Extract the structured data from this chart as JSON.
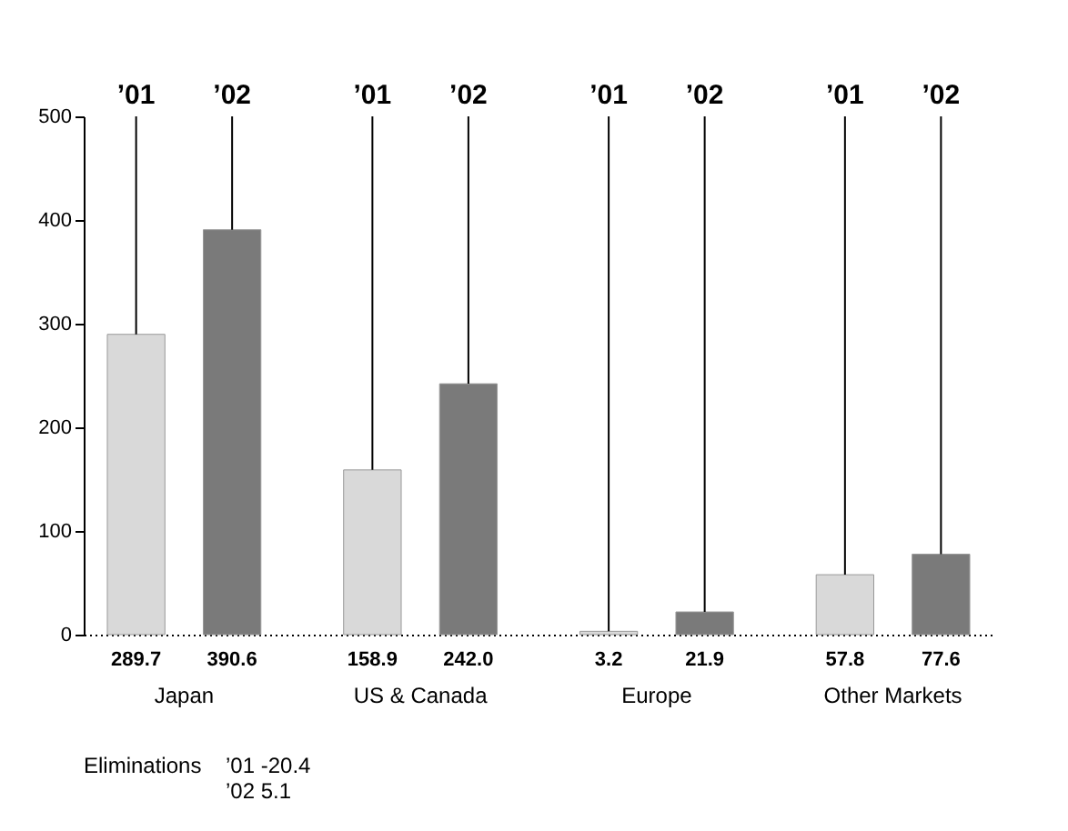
{
  "chart_data": {
    "type": "bar",
    "categories": [
      "Japan",
      "US & Canada",
      "Europe",
      "Other Markets"
    ],
    "series": [
      {
        "name": "’01",
        "color": "#d9d9d9",
        "values": [
          289.7,
          158.9,
          3.2,
          57.8
        ],
        "value_labels": [
          "289.7",
          "158.9",
          "3.2",
          "57.8"
        ]
      },
      {
        "name": "’02",
        "color": "#7a7a7a",
        "values": [
          390.6,
          242.0,
          21.9,
          77.6
        ],
        "value_labels": [
          "390.6",
          "242.0",
          "21.9",
          "77.6"
        ]
      }
    ],
    "ylim": [
      0,
      500
    ],
    "yticks": [
      0,
      100,
      200,
      300,
      400,
      500
    ],
    "grid": false,
    "legend": false,
    "annotations": [
      "Eliminations",
      "’01  -20.4",
      "’02    5.1"
    ]
  }
}
